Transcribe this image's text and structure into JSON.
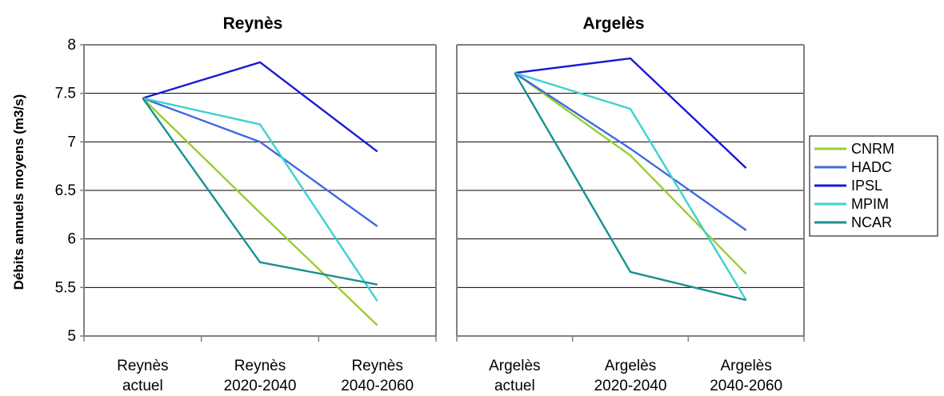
{
  "chart_data": {
    "type": "line",
    "ylabel": "Débits annuels moyens (m3/s)",
    "ylim": [
      5,
      8
    ],
    "yticks": [
      "5",
      "5.5",
      "6",
      "6.5",
      "7",
      "7.5",
      "8"
    ],
    "grid": true,
    "legend_position": "right",
    "series_meta": [
      {
        "name": "CNRM",
        "color": "#9acd32"
      },
      {
        "name": "HADC",
        "color": "#4169e1"
      },
      {
        "name": "IPSL",
        "color": "#1a1ad6"
      },
      {
        "name": "MPIM",
        "color": "#40d0d0"
      },
      {
        "name": "NCAR",
        "color": "#1a9090"
      }
    ],
    "panels": [
      {
        "title": "Reynès",
        "categories": [
          [
            "Reynès",
            "actuel"
          ],
          [
            "Reynès",
            "2020-2040"
          ],
          [
            "Reynès",
            "2040-2060"
          ]
        ],
        "series": [
          {
            "name": "CNRM",
            "values": [
              7.45,
              6.27,
              5.11
            ]
          },
          {
            "name": "HADC",
            "values": [
              7.45,
              7.0,
              6.13
            ]
          },
          {
            "name": "IPSL",
            "values": [
              7.45,
              7.82,
              6.9
            ]
          },
          {
            "name": "MPIM",
            "values": [
              7.45,
              7.18,
              5.36
            ]
          },
          {
            "name": "NCAR",
            "values": [
              7.45,
              5.76,
              5.53
            ]
          }
        ]
      },
      {
        "title": "Argelès",
        "categories": [
          [
            "Argelès",
            "actuel"
          ],
          [
            "Argelès",
            "2020-2040"
          ],
          [
            "Argelès",
            "2040-2060"
          ]
        ],
        "series": [
          {
            "name": "CNRM",
            "values": [
              7.71,
              6.86,
              5.64
            ]
          },
          {
            "name": "HADC",
            "values": [
              7.71,
              6.93,
              6.09
            ]
          },
          {
            "name": "IPSL",
            "values": [
              7.71,
              7.86,
              6.73
            ]
          },
          {
            "name": "MPIM",
            "values": [
              7.71,
              7.34,
              5.37
            ]
          },
          {
            "name": "NCAR",
            "values": [
              7.71,
              5.66,
              5.37
            ]
          }
        ]
      }
    ]
  }
}
